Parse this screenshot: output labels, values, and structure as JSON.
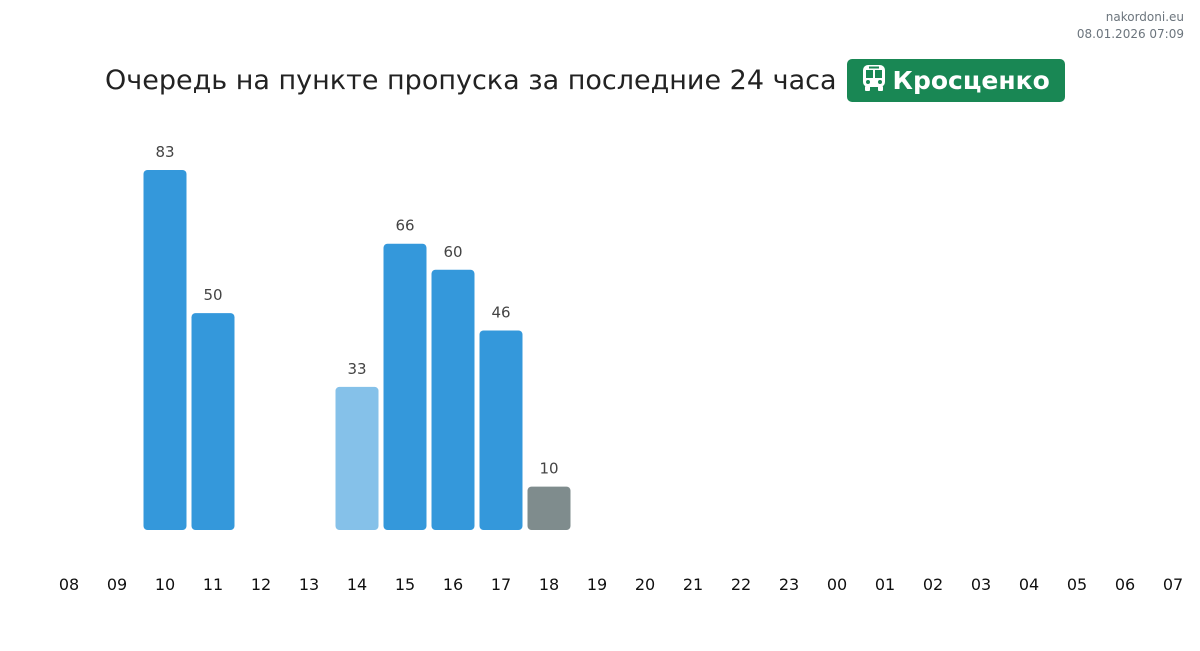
{
  "site": {
    "name": "nakordoni.eu",
    "timestamp": "08.01.2026 07:09"
  },
  "header": {
    "title": "Очередь на пункте пропуска за последние 24 часа",
    "checkpoint": "Кросценко",
    "checkpoint_icon": "bus-icon"
  },
  "colors": {
    "normal": "#3498db",
    "light": "#85c1e9",
    "gray": "#7f8c8d",
    "badge": "#198754"
  },
  "chart_data": {
    "type": "bar",
    "title": "Очередь на пункте пропуска за последние 24 часа",
    "categories": [
      "08",
      "09",
      "10",
      "11",
      "12",
      "13",
      "14",
      "15",
      "16",
      "17",
      "18",
      "19",
      "20",
      "21",
      "22",
      "23",
      "00",
      "01",
      "02",
      "03",
      "04",
      "05",
      "06",
      "07"
    ],
    "values": [
      null,
      null,
      83,
      50,
      null,
      null,
      33,
      66,
      60,
      46,
      10,
      null,
      null,
      null,
      null,
      null,
      null,
      null,
      null,
      null,
      null,
      null,
      null,
      null
    ],
    "bar_styles": [
      null,
      null,
      "normal",
      "normal",
      null,
      null,
      "light",
      "normal",
      "normal",
      "normal",
      "gray",
      null,
      null,
      null,
      null,
      null,
      null,
      null,
      null,
      null,
      null,
      null,
      null,
      null
    ],
    "ylim": [
      0,
      83
    ]
  }
}
